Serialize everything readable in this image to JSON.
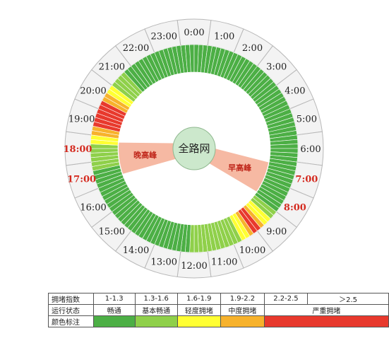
{
  "chart_data": {
    "type": "radial-heatmap",
    "center_label": "全路网",
    "hours": [
      {
        "label": "0:00",
        "peak": false
      },
      {
        "label": "1:00",
        "peak": false
      },
      {
        "label": "2:00",
        "peak": false
      },
      {
        "label": "3:00",
        "peak": false
      },
      {
        "label": "4:00",
        "peak": false
      },
      {
        "label": "5:00",
        "peak": false
      },
      {
        "label": "6:00",
        "peak": false
      },
      {
        "label": "7:00",
        "peak": true
      },
      {
        "label": "8:00",
        "peak": true
      },
      {
        "label": "9:00",
        "peak": false
      },
      {
        "label": "10:00",
        "peak": false
      },
      {
        "label": "11:00",
        "peak": false
      },
      {
        "label": "12:00",
        "peak": false
      },
      {
        "label": "13:00",
        "peak": false
      },
      {
        "label": "14:00",
        "peak": false
      },
      {
        "label": "15:00",
        "peak": false
      },
      {
        "label": "16:00",
        "peak": false
      },
      {
        "label": "17:00",
        "peak": true
      },
      {
        "label": "18:00",
        "peak": true
      },
      {
        "label": "19:00",
        "peak": false
      },
      {
        "label": "20:00",
        "peak": false
      },
      {
        "label": "21:00",
        "peak": false
      },
      {
        "label": "22:00",
        "peak": false
      },
      {
        "label": "23:00",
        "peak": false
      }
    ],
    "slot_levels": [
      1,
      1,
      1,
      1,
      1,
      1,
      1,
      1,
      1,
      1,
      1,
      1,
      1,
      1,
      1,
      1,
      1,
      1,
      1,
      1,
      1,
      1,
      1,
      1,
      1,
      1,
      1,
      1,
      1,
      1,
      1,
      1,
      1,
      1,
      1,
      1,
      1,
      1,
      1,
      1,
      1,
      1,
      1,
      1,
      1,
      1,
      1,
      1,
      1,
      1,
      1,
      1,
      1,
      1,
      2,
      2,
      3,
      3,
      4,
      5,
      5,
      4,
      3,
      3,
      2,
      2,
      2,
      2,
      2,
      2,
      2,
      2,
      2,
      2,
      2,
      2,
      1,
      1,
      1,
      1,
      1,
      1,
      1,
      1,
      1,
      1,
      1,
      1,
      1,
      1,
      1,
      1,
      1,
      1,
      1,
      1,
      1,
      1,
      1,
      1,
      1,
      1,
      1,
      1,
      1,
      1,
      2,
      2,
      2,
      2,
      2,
      2,
      3,
      3,
      4,
      4,
      5,
      5,
      5,
      5,
      5,
      5,
      4,
      4,
      3,
      3,
      2,
      2,
      2,
      2,
      1,
      1,
      1,
      1,
      1,
      1,
      1,
      1,
      1,
      1,
      1,
      1,
      1,
      1
    ],
    "peaks": [
      {
        "label": "早高峰",
        "start_hour": 7,
        "end_hour": 8
      },
      {
        "label": "晚高峰",
        "start_hour": 17,
        "end_hour": 18
      }
    ],
    "level_colors": [
      "#4caf45",
      "#8fd04a",
      "#ffff33",
      "#f7b22c",
      "#e8392d"
    ],
    "hour_label_color": "#222222",
    "peak_label_color": "#d42a1f",
    "peak_fill": "#f6b9a3",
    "center_fill": "#cce8cc"
  },
  "legend": {
    "header_index": "拥堵指数",
    "header_status": "运行状态",
    "header_color": "颜色标注",
    "ranges": [
      "1-1.3",
      "1.3-1.6",
      "1.6-1.9",
      "1.9-2.2",
      "2.2-2.5",
      "＞2.5"
    ],
    "status": [
      "畅通",
      "基本畅通",
      "轻度拥堵",
      "中度拥堵",
      "严重拥堵"
    ]
  }
}
